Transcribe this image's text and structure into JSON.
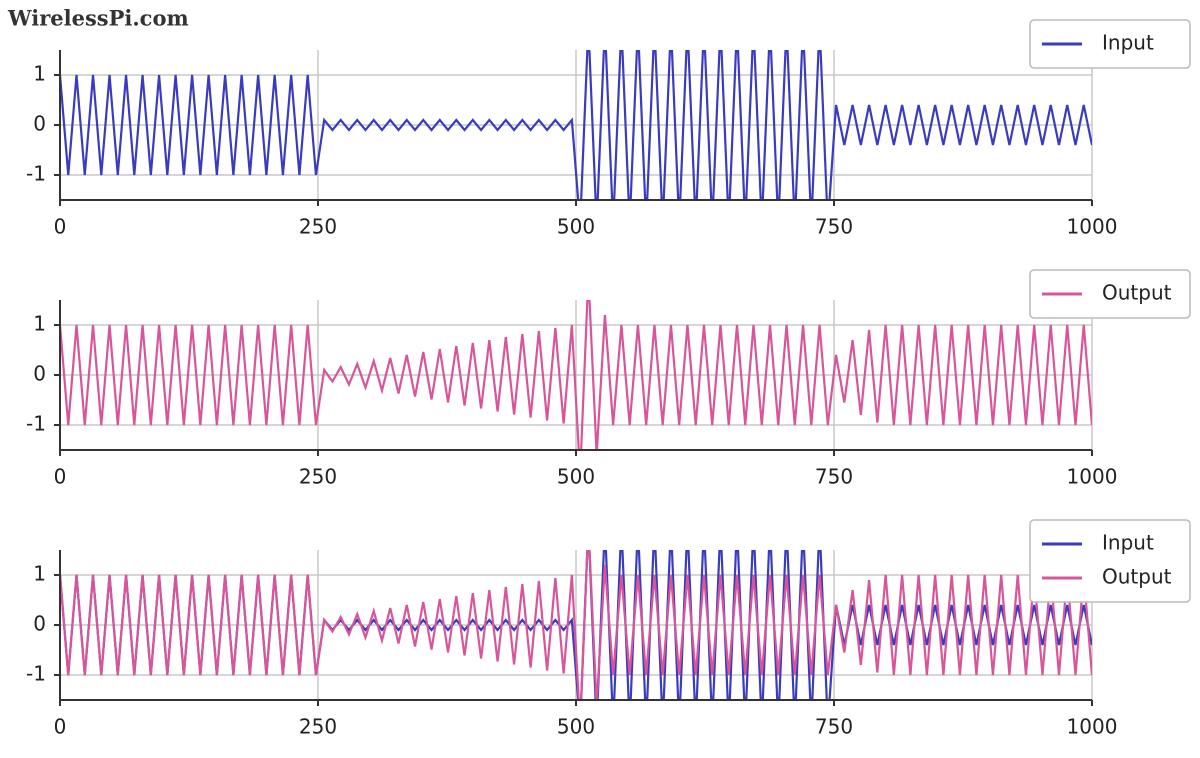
{
  "watermark": "WirelessPi.com",
  "chart_data": [
    {
      "type": "line",
      "xlim": [
        0,
        1000
      ],
      "ylim": [
        -1.5,
        1.5
      ],
      "xticks": [
        0,
        250,
        500,
        750,
        1000
      ],
      "yticks": [
        -1,
        0,
        1
      ],
      "grid": true,
      "legend": "upper right",
      "x": [
        0,
        8,
        16,
        24,
        32,
        40,
        48,
        56,
        64,
        72,
        80,
        88,
        96,
        104,
        112,
        120,
        128,
        136,
        144,
        152,
        160,
        168,
        176,
        184,
        192,
        200,
        208,
        216,
        224,
        232,
        240,
        248,
        256,
        264,
        272,
        280,
        288,
        296,
        304,
        312,
        320,
        328,
        336,
        344,
        352,
        360,
        368,
        376,
        384,
        392,
        400,
        408,
        416,
        424,
        432,
        440,
        448,
        456,
        464,
        472,
        480,
        488,
        496,
        504,
        512,
        520,
        528,
        536,
        544,
        552,
        560,
        568,
        576,
        584,
        592,
        600,
        608,
        616,
        624,
        632,
        640,
        648,
        656,
        664,
        672,
        680,
        688,
        696,
        704,
        712,
        720,
        728,
        736,
        744,
        752,
        760,
        768,
        776,
        784,
        792,
        800,
        808,
        816,
        824,
        832,
        840,
        848,
        856,
        864,
        872,
        880,
        888,
        896,
        904,
        912,
        920,
        928,
        936,
        944,
        952,
        960,
        968,
        976,
        984,
        992,
        1000
      ],
      "series": [
        {
          "name": "Input",
          "color": "#3b3bbf",
          "values": [
            1,
            -1,
            1,
            -1,
            1,
            -1,
            1,
            -1,
            1,
            -1,
            1,
            -1,
            1,
            -1,
            1,
            -1,
            1,
            -1,
            1,
            -1,
            1,
            -1,
            1,
            -1,
            1,
            -1,
            1,
            -1,
            1,
            -1,
            1,
            -1,
            0.1,
            -0.1,
            0.1,
            -0.1,
            0.1,
            -0.1,
            0.1,
            -0.1,
            0.1,
            -0.1,
            0.1,
            -0.1,
            0.1,
            -0.1,
            0.1,
            -0.1,
            0.1,
            -0.1,
            0.1,
            -0.1,
            0.1,
            -0.1,
            0.1,
            -0.1,
            0.1,
            -0.1,
            0.1,
            -0.1,
            0.1,
            -0.1,
            0.1,
            -2,
            2,
            -2,
            2,
            -2,
            2,
            -2,
            2,
            -2,
            2,
            -2,
            2,
            -2,
            2,
            -2,
            2,
            -2,
            2,
            -2,
            2,
            -2,
            2,
            -2,
            2,
            -2,
            2,
            -2,
            2,
            -2,
            2,
            -2,
            0.4,
            -0.4,
            0.4,
            -0.4,
            0.4,
            -0.4,
            0.4,
            -0.4,
            0.4,
            -0.4,
            0.4,
            -0.4,
            0.4,
            -0.4,
            0.4,
            -0.4,
            0.4,
            -0.4,
            0.4,
            -0.4,
            0.4,
            -0.4,
            0.4,
            -0.4,
            0.4,
            -0.4,
            0.4,
            -0.4,
            0.4,
            -0.4,
            0.4,
            -0.4
          ]
        }
      ]
    },
    {
      "type": "line",
      "xlim": [
        0,
        1000
      ],
      "ylim": [
        -1.5,
        1.5
      ],
      "xticks": [
        0,
        250,
        500,
        750,
        1000
      ],
      "yticks": [
        -1,
        0,
        1
      ],
      "grid": true,
      "legend": "upper right",
      "x": [
        0,
        8,
        16,
        24,
        32,
        40,
        48,
        56,
        64,
        72,
        80,
        88,
        96,
        104,
        112,
        120,
        128,
        136,
        144,
        152,
        160,
        168,
        176,
        184,
        192,
        200,
        208,
        216,
        224,
        232,
        240,
        248,
        256,
        264,
        272,
        280,
        288,
        296,
        304,
        312,
        320,
        328,
        336,
        344,
        352,
        360,
        368,
        376,
        384,
        392,
        400,
        408,
        416,
        424,
        432,
        440,
        448,
        456,
        464,
        472,
        480,
        488,
        496,
        504,
        512,
        520,
        528,
        536,
        544,
        552,
        560,
        568,
        576,
        584,
        592,
        600,
        608,
        616,
        624,
        632,
        640,
        648,
        656,
        664,
        672,
        680,
        688,
        696,
        704,
        712,
        720,
        728,
        736,
        744,
        752,
        760,
        768,
        776,
        784,
        792,
        800,
        808,
        816,
        824,
        832,
        840,
        848,
        856,
        864,
        872,
        880,
        888,
        896,
        904,
        912,
        920,
        928,
        936,
        944,
        952,
        960,
        968,
        976,
        984,
        992,
        1000
      ],
      "series": [
        {
          "name": "Output",
          "color": "#d9559a",
          "values": [
            1,
            -1,
            1,
            -1,
            1,
            -1,
            1,
            -1,
            1,
            -1,
            1,
            -1,
            1,
            -1,
            1,
            -1,
            1,
            -1,
            1,
            -1,
            1,
            -1,
            1,
            -1,
            1,
            -1,
            1,
            -1,
            1,
            -1,
            1,
            -1,
            0.1,
            -0.13,
            0.16,
            -0.19,
            0.22,
            -0.25,
            0.28,
            -0.31,
            0.34,
            -0.37,
            0.4,
            -0.43,
            0.46,
            -0.49,
            0.52,
            -0.55,
            0.58,
            -0.61,
            0.64,
            -0.67,
            0.7,
            -0.73,
            0.76,
            -0.79,
            0.82,
            -0.85,
            0.88,
            -0.91,
            0.94,
            -0.97,
            1,
            -2,
            2,
            -1.6,
            1.2,
            -1,
            1,
            -1,
            1,
            -1,
            1,
            -1,
            1,
            -1,
            1,
            -1,
            1,
            -1,
            1,
            -1,
            1,
            -1,
            1,
            -1,
            1,
            -1,
            1,
            -1,
            1,
            -1,
            1,
            -1,
            0.4,
            -0.55,
            0.7,
            -0.8,
            0.9,
            -0.95,
            1,
            -1,
            1,
            -1,
            1,
            -1,
            1,
            -1,
            1,
            -1,
            1,
            -1,
            1,
            -1,
            1,
            -1,
            1,
            -1,
            1,
            -1,
            1,
            -1,
            1,
            -1,
            1,
            -1
          ]
        }
      ]
    },
    {
      "type": "line",
      "xlim": [
        0,
        1000
      ],
      "ylim": [
        -1.5,
        1.5
      ],
      "xticks": [
        0,
        250,
        500,
        750,
        1000
      ],
      "yticks": [
        -1,
        0,
        1
      ],
      "grid": true,
      "legend": "upper right",
      "x": [
        0,
        8,
        16,
        24,
        32,
        40,
        48,
        56,
        64,
        72,
        80,
        88,
        96,
        104,
        112,
        120,
        128,
        136,
        144,
        152,
        160,
        168,
        176,
        184,
        192,
        200,
        208,
        216,
        224,
        232,
        240,
        248,
        256,
        264,
        272,
        280,
        288,
        296,
        304,
        312,
        320,
        328,
        336,
        344,
        352,
        360,
        368,
        376,
        384,
        392,
        400,
        408,
        416,
        424,
        432,
        440,
        448,
        456,
        464,
        472,
        480,
        488,
        496,
        504,
        512,
        520,
        528,
        536,
        544,
        552,
        560,
        568,
        576,
        584,
        592,
        600,
        608,
        616,
        624,
        632,
        640,
        648,
        656,
        664,
        672,
        680,
        688,
        696,
        704,
        712,
        720,
        728,
        736,
        744,
        752,
        760,
        768,
        776,
        784,
        792,
        800,
        808,
        816,
        824,
        832,
        840,
        848,
        856,
        864,
        872,
        880,
        888,
        896,
        904,
        912,
        920,
        928,
        936,
        944,
        952,
        960,
        968,
        976,
        984,
        992,
        1000
      ],
      "series": [
        {
          "name": "Input",
          "color": "#3b3bbf",
          "values": [
            1,
            -1,
            1,
            -1,
            1,
            -1,
            1,
            -1,
            1,
            -1,
            1,
            -1,
            1,
            -1,
            1,
            -1,
            1,
            -1,
            1,
            -1,
            1,
            -1,
            1,
            -1,
            1,
            -1,
            1,
            -1,
            1,
            -1,
            1,
            -1,
            0.1,
            -0.1,
            0.1,
            -0.1,
            0.1,
            -0.1,
            0.1,
            -0.1,
            0.1,
            -0.1,
            0.1,
            -0.1,
            0.1,
            -0.1,
            0.1,
            -0.1,
            0.1,
            -0.1,
            0.1,
            -0.1,
            0.1,
            -0.1,
            0.1,
            -0.1,
            0.1,
            -0.1,
            0.1,
            -0.1,
            0.1,
            -0.1,
            0.1,
            -2,
            2,
            -2,
            2,
            -2,
            2,
            -2,
            2,
            -2,
            2,
            -2,
            2,
            -2,
            2,
            -2,
            2,
            -2,
            2,
            -2,
            2,
            -2,
            2,
            -2,
            2,
            -2,
            2,
            -2,
            2,
            -2,
            2,
            -2,
            0.4,
            -0.4,
            0.4,
            -0.4,
            0.4,
            -0.4,
            0.4,
            -0.4,
            0.4,
            -0.4,
            0.4,
            -0.4,
            0.4,
            -0.4,
            0.4,
            -0.4,
            0.4,
            -0.4,
            0.4,
            -0.4,
            0.4,
            -0.4,
            0.4,
            -0.4,
            0.4,
            -0.4,
            0.4,
            -0.4,
            0.4,
            -0.4,
            0.4,
            -0.4
          ]
        },
        {
          "name": "Output",
          "color": "#d9559a",
          "values": [
            1,
            -1,
            1,
            -1,
            1,
            -1,
            1,
            -1,
            1,
            -1,
            1,
            -1,
            1,
            -1,
            1,
            -1,
            1,
            -1,
            1,
            -1,
            1,
            -1,
            1,
            -1,
            1,
            -1,
            1,
            -1,
            1,
            -1,
            1,
            -1,
            0.1,
            -0.13,
            0.16,
            -0.19,
            0.22,
            -0.25,
            0.28,
            -0.31,
            0.34,
            -0.37,
            0.4,
            -0.43,
            0.46,
            -0.49,
            0.52,
            -0.55,
            0.58,
            -0.61,
            0.64,
            -0.67,
            0.7,
            -0.73,
            0.76,
            -0.79,
            0.82,
            -0.85,
            0.88,
            -0.91,
            0.94,
            -0.97,
            1,
            -2,
            2,
            -1.6,
            1.2,
            -1,
            1,
            -1,
            1,
            -1,
            1,
            -1,
            1,
            -1,
            1,
            -1,
            1,
            -1,
            1,
            -1,
            1,
            -1,
            1,
            -1,
            1,
            -1,
            1,
            -1,
            1,
            -1,
            1,
            -1,
            0.4,
            -0.55,
            0.7,
            -0.8,
            0.9,
            -0.95,
            1,
            -1,
            1,
            -1,
            1,
            -1,
            1,
            -1,
            1,
            -1,
            1,
            -1,
            1,
            -1,
            1,
            -1,
            1,
            -1,
            1,
            -1,
            1,
            -1,
            1,
            -1,
            1,
            -1
          ]
        }
      ]
    }
  ]
}
